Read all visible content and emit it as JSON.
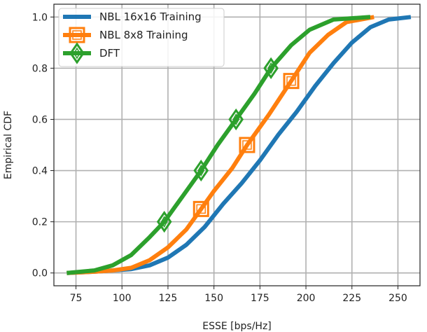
{
  "chart_data": {
    "type": "line",
    "title": "",
    "xlabel": "ESSE [bps/Hz]",
    "ylabel": "Empirical CDF",
    "xlim": [
      63,
      262
    ],
    "ylim": [
      -0.05,
      1.05
    ],
    "xticks": [
      75,
      100,
      125,
      150,
      175,
      200,
      225,
      250
    ],
    "yticks": [
      0.0,
      0.2,
      0.4,
      0.6,
      0.8,
      1.0
    ],
    "ytick_labels": [
      "0.0",
      "0.2",
      "0.4",
      "0.6",
      "0.8",
      "1.0"
    ],
    "grid": true,
    "legend_position": "top-left",
    "series": [
      {
        "name": "NBL 16x16 Training",
        "color": "#1f77b4",
        "marker": "none",
        "points": [
          [
            70,
            0.0
          ],
          [
            85,
            0.005
          ],
          [
            95,
            0.01
          ],
          [
            105,
            0.015
          ],
          [
            115,
            0.03
          ],
          [
            125,
            0.06
          ],
          [
            135,
            0.11
          ],
          [
            145,
            0.18
          ],
          [
            155,
            0.27
          ],
          [
            165,
            0.35
          ],
          [
            175,
            0.44
          ],
          [
            185,
            0.54
          ],
          [
            195,
            0.63
          ],
          [
            205,
            0.73
          ],
          [
            215,
            0.82
          ],
          [
            225,
            0.9
          ],
          [
            235,
            0.96
          ],
          [
            245,
            0.99
          ],
          [
            257,
            1.0
          ]
        ],
        "marker_points": []
      },
      {
        "name": "NBL 8x8 Training",
        "color": "#ff7f0e",
        "marker": "square",
        "points": [
          [
            70,
            0.0
          ],
          [
            85,
            0.005
          ],
          [
            95,
            0.01
          ],
          [
            105,
            0.02
          ],
          [
            115,
            0.05
          ],
          [
            125,
            0.1
          ],
          [
            135,
            0.17
          ],
          [
            143,
            0.25
          ],
          [
            150,
            0.32
          ],
          [
            160,
            0.41
          ],
          [
            168,
            0.5
          ],
          [
            180,
            0.62
          ],
          [
            192,
            0.75
          ],
          [
            202,
            0.86
          ],
          [
            212,
            0.93
          ],
          [
            222,
            0.98
          ],
          [
            237,
            1.0
          ]
        ],
        "marker_points": [
          [
            143,
            0.25
          ],
          [
            168,
            0.5
          ],
          [
            192,
            0.75
          ]
        ]
      },
      {
        "name": "DFT",
        "color": "#2ca02c",
        "marker": "diamond",
        "points": [
          [
            70,
            0.0
          ],
          [
            85,
            0.01
          ],
          [
            95,
            0.03
          ],
          [
            105,
            0.07
          ],
          [
            115,
            0.14
          ],
          [
            123,
            0.2
          ],
          [
            133,
            0.3
          ],
          [
            143,
            0.4
          ],
          [
            152,
            0.5
          ],
          [
            162,
            0.6
          ],
          [
            172,
            0.7
          ],
          [
            181,
            0.8
          ],
          [
            192,
            0.89
          ],
          [
            202,
            0.95
          ],
          [
            215,
            0.99
          ],
          [
            235,
            1.0
          ]
        ],
        "marker_points": [
          [
            123,
            0.2
          ],
          [
            143,
            0.4
          ],
          [
            162,
            0.6
          ],
          [
            181,
            0.8
          ]
        ]
      }
    ]
  }
}
